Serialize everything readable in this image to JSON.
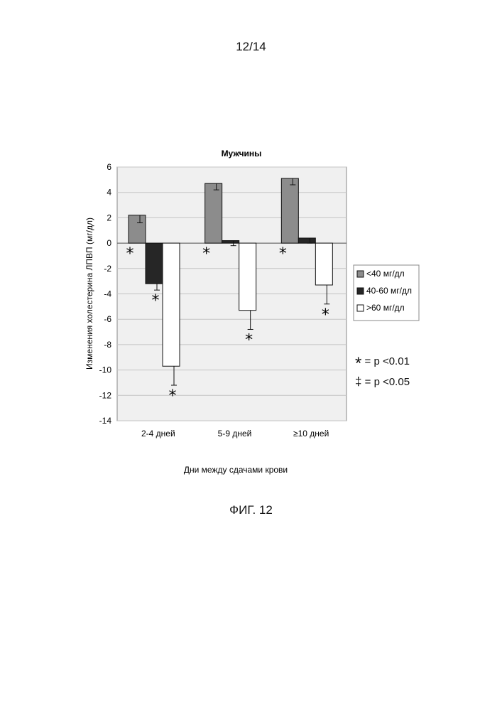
{
  "page_number": "12/14",
  "figure_label": "ФИГ. 12",
  "significance_notes": [
    {
      "symbol": "*",
      "text": "= p <0.01"
    },
    {
      "symbol": "‡",
      "text": "= p <0.05"
    }
  ],
  "colors": {
    "series_lt40": "#8c8c8c",
    "series_40_60": "#262626",
    "series_gt60": "#ffffff",
    "plot_bg": "#f0f0f0",
    "grid": "#c4c4c4"
  },
  "chart_data": {
    "type": "bar",
    "title": "Мужчины",
    "xlabel": "Дни между сдачами крови",
    "ylabel": "Изменения холестерина ЛПВП (мг/дл)",
    "ylim": [
      -14,
      6
    ],
    "yticks": [
      6,
      4,
      2,
      0,
      -2,
      -4,
      -6,
      -8,
      -10,
      -12,
      -14
    ],
    "categories": [
      "2-4  дней",
      "5-9   дней",
      "≥10  дней"
    ],
    "grid": true,
    "legend_position": "right",
    "series": [
      {
        "name": "<40 мг/дл",
        "values": [
          2.2,
          4.7,
          5.1
        ],
        "errors": [
          0.6,
          0.5,
          0.5
        ],
        "markers": [
          "*",
          "*",
          "*"
        ]
      },
      {
        "name": "40-60 мг/дл",
        "values": [
          -3.2,
          0.2,
          0.4
        ],
        "errors": [
          0.5,
          0.4,
          0.4
        ],
        "markers": [
          "*",
          "",
          ""
        ]
      },
      {
        "name": ">60 мг/дл",
        "values": [
          -9.7,
          -5.3,
          -3.3
        ],
        "errors": [
          1.5,
          1.5,
          1.5
        ],
        "markers": [
          "*",
          "*",
          "*"
        ]
      }
    ]
  }
}
